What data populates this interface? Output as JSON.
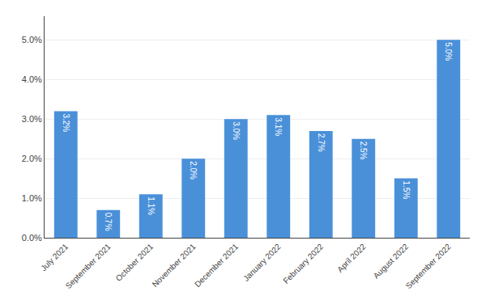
{
  "chart_data": {
    "type": "bar",
    "categories": [
      "July 2021",
      "September 2021",
      "October 2021",
      "November 2021",
      "December 2021",
      "January 2022",
      "February 2022",
      "April 2022",
      "August 2022",
      "September 2022"
    ],
    "values": [
      3.2,
      0.7,
      1.1,
      2.0,
      3.0,
      3.1,
      2.7,
      2.5,
      1.5,
      5.0
    ],
    "value_labels": [
      "3.2%",
      "0.7%",
      "1.1%",
      "2.0%",
      "3.0%",
      "3.1%",
      "2.7%",
      "2.5%",
      "1.5%",
      "5.0%"
    ],
    "data_labels": true,
    "color": "#4a90d9",
    "ylim": [
      0,
      5.6
    ],
    "yticks": [
      {
        "value": 0.0,
        "label": "0.0%"
      },
      {
        "value": 1.0,
        "label": "1.0%"
      },
      {
        "value": 2.0,
        "label": "2.0%"
      },
      {
        "value": 3.0,
        "label": "3.0%"
      },
      {
        "value": 4.0,
        "label": "4.0%"
      },
      {
        "value": 5.0,
        "label": "5.0%"
      }
    ],
    "grid": true
  }
}
